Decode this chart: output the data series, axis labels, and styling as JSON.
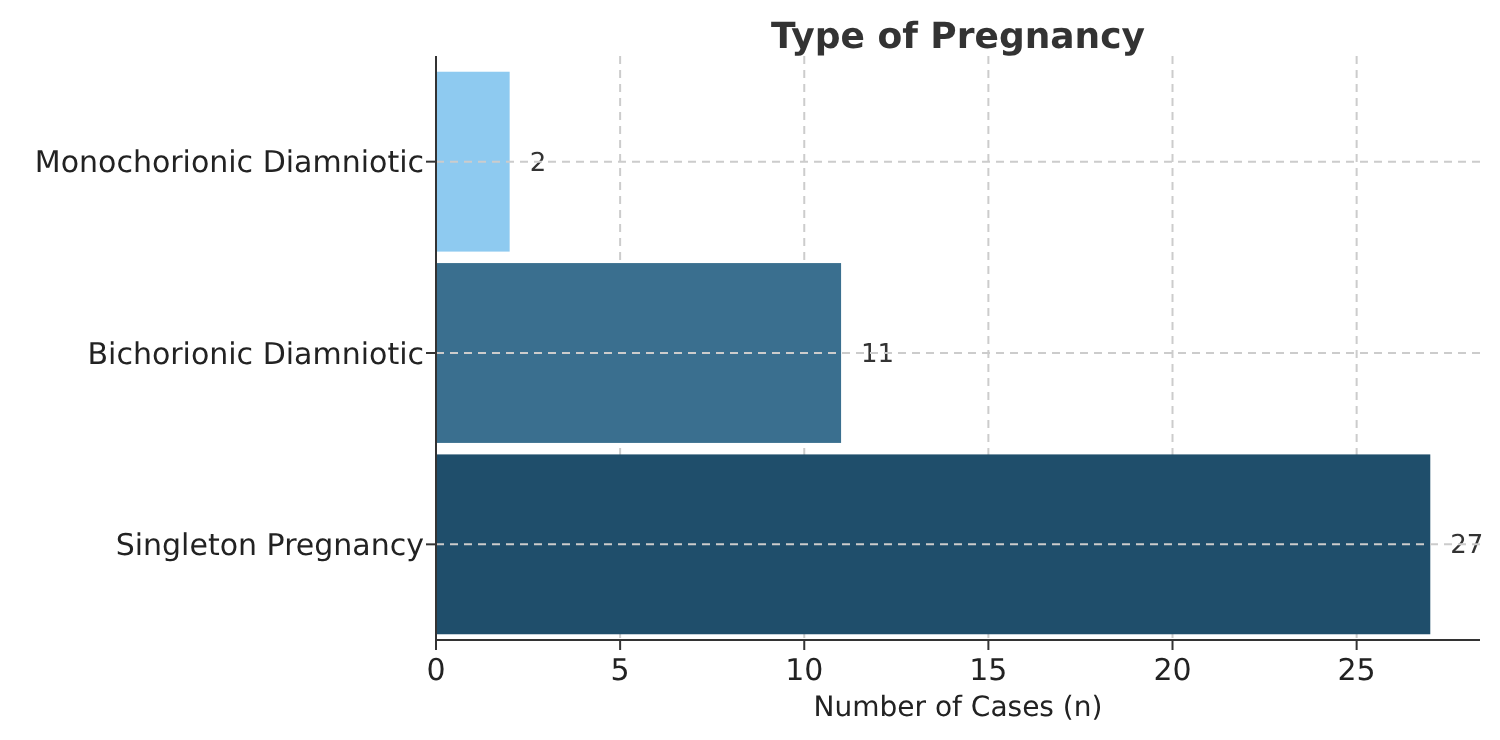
{
  "chart_data": {
    "type": "bar",
    "orientation": "horizontal",
    "title": "Type of Pregnancy",
    "xlabel": "Number of Cases (n)",
    "categories": [
      "Monochorionic Diamniotic",
      "Bichorionic Diamniotic",
      "Singleton Pregnancy"
    ],
    "values": [
      2,
      11,
      27
    ],
    "colors": [
      "#8ecaf0",
      "#3a6f8f",
      "#1f4e6b"
    ],
    "xlim": [
      0,
      28.35
    ],
    "xticks": [
      0,
      5,
      10,
      15,
      20,
      25
    ],
    "grid": true,
    "data_labels": true
  }
}
